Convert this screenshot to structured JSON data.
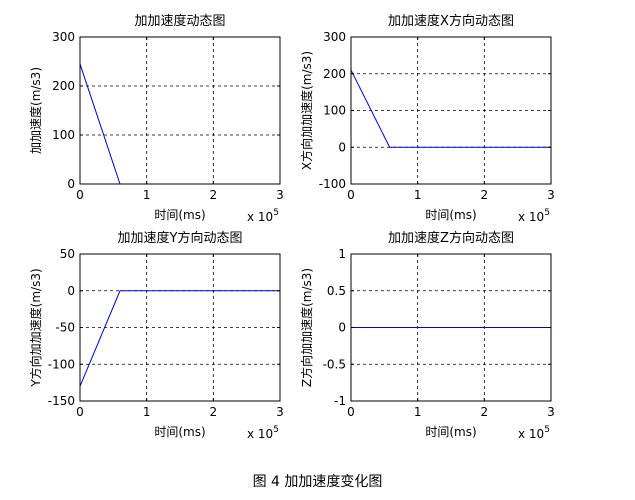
{
  "figure": {
    "caption": "图 4  加加速度变化图"
  },
  "chart_data": [
    {
      "type": "line",
      "title": "加加速度动态图",
      "xlabel": "时间(ms)",
      "ylabel": "加加速度(m/s3)",
      "x_exponent_label": "x 10",
      "x_exponent_power": "5",
      "xlim": [
        0,
        3
      ],
      "ylim": [
        0,
        300
      ],
      "xticks": [
        "0",
        "1",
        "2",
        "3"
      ],
      "yticks": [
        "0",
        "100",
        "200",
        "300"
      ],
      "grid": true,
      "line_color": "#0000cc",
      "series": [
        {
          "x": [
            0,
            0.6,
            3
          ],
          "y": [
            245,
            0,
            0
          ]
        }
      ]
    },
    {
      "type": "line",
      "title": "加加速度X方向动态图",
      "xlabel": "时间(ms)",
      "ylabel": "X方向加加速度(m/s3)",
      "x_exponent_label": "x 10",
      "x_exponent_power": "5",
      "xlim": [
        0,
        3
      ],
      "ylim": [
        -100,
        300
      ],
      "xticks": [
        "0",
        "1",
        "2",
        "3"
      ],
      "yticks": [
        "-100",
        "0",
        "100",
        "200",
        "300"
      ],
      "grid": true,
      "line_color": "#0000cc",
      "series": [
        {
          "x": [
            0,
            0.58,
            3
          ],
          "y": [
            210,
            0,
            0
          ]
        }
      ]
    },
    {
      "type": "line",
      "title": "加加速度Y方向动态图",
      "xlabel": "时间(ms)",
      "ylabel": "Y方向加加速度(m/s3)",
      "x_exponent_label": "x 10",
      "x_exponent_power": "5",
      "xlim": [
        0,
        3
      ],
      "ylim": [
        -150,
        50
      ],
      "xticks": [
        "0",
        "1",
        "2",
        "3"
      ],
      "yticks": [
        "-150",
        "-100",
        "-50",
        "0",
        "50"
      ],
      "grid": true,
      "line_color": "#0000cc",
      "series": [
        {
          "x": [
            0,
            0.6,
            3
          ],
          "y": [
            -130,
            0,
            0
          ]
        }
      ]
    },
    {
      "type": "line",
      "title": "加加速度Z方向动态图",
      "xlabel": "时间(ms)",
      "ylabel": "Z方向加加速度(m/s3)",
      "x_exponent_label": "x 10",
      "x_exponent_power": "5",
      "xlim": [
        0,
        3
      ],
      "ylim": [
        -1,
        1
      ],
      "xticks": [
        "0",
        "1",
        "2",
        "3"
      ],
      "yticks": [
        "-1",
        "-0.5",
        "0",
        "0.5",
        "1"
      ],
      "grid": true,
      "line_color": "#0000cc",
      "series": [
        {
          "x": [
            0,
            3
          ],
          "y": [
            0,
            0
          ]
        }
      ]
    }
  ]
}
